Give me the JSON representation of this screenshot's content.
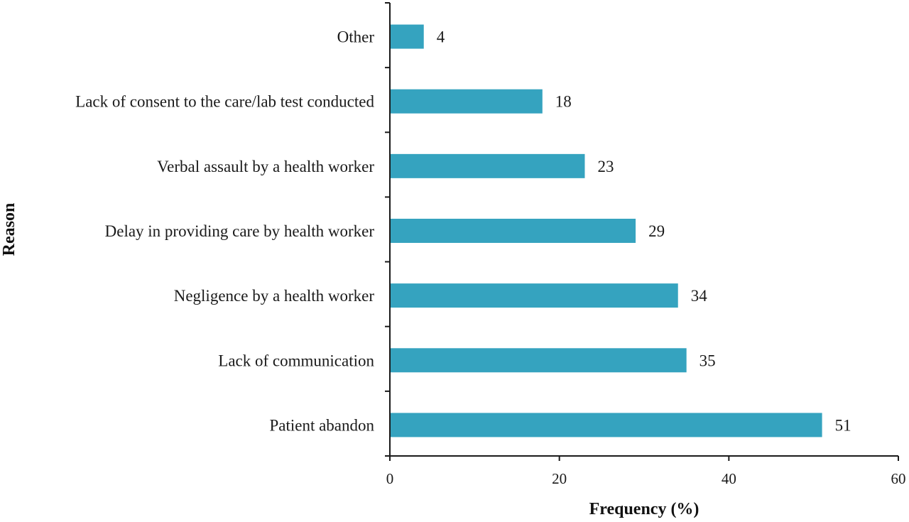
{
  "chart_data": {
    "type": "bar",
    "orientation": "horizontal",
    "categories": [
      "Patient abandon",
      "Lack of communication",
      "Negligence by a health worker",
      "Delay in providing care by health worker",
      "Verbal assault by a health worker",
      "Lack of consent to the care/lab test conducted",
      "Other"
    ],
    "values": [
      51,
      35,
      34,
      29,
      23,
      18,
      4
    ],
    "data_labels": [
      "51",
      "35",
      "34",
      "29",
      "23",
      "18",
      "4"
    ],
    "xlabel": "Frequency (%)",
    "ylabel": "Reason",
    "xlim": [
      0,
      60
    ],
    "xticks": [
      0,
      20,
      40,
      60
    ],
    "xtick_labels": [
      "0",
      "20",
      "40",
      "60"
    ],
    "grid": false,
    "legend": "none",
    "bar_color": "#35A3BF"
  }
}
